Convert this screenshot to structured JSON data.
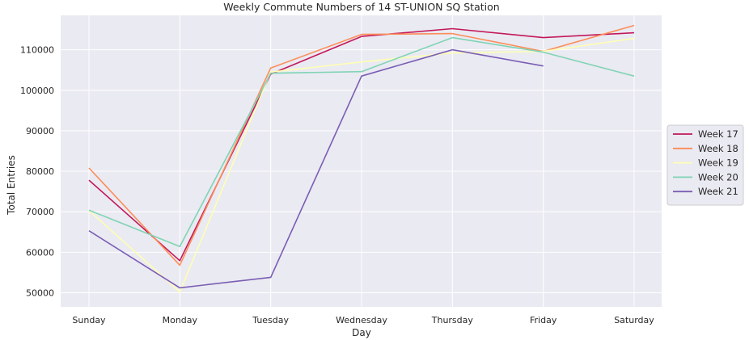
{
  "chart_data": {
    "type": "line",
    "title": "Weekly Commute Numbers of 14 ST-UNION SQ Station",
    "xlabel": "Day",
    "ylabel": "Total Entries",
    "categories": [
      "Sunday",
      "Monday",
      "Tuesday",
      "Wednesday",
      "Thursday",
      "Friday",
      "Saturday"
    ],
    "ylim": [
      46500,
      118500
    ],
    "yticks": [
      50000,
      60000,
      70000,
      80000,
      90000,
      100000,
      110000
    ],
    "grid": true,
    "legend_position": "right",
    "background": "#eaeaf2",
    "series": [
      {
        "name": "Week 17",
        "color": "#c2185b",
        "values": [
          77800,
          57900,
          104000,
          113300,
          115200,
          113000,
          114200
        ]
      },
      {
        "name": "Week 18",
        "color": "#fc8d59",
        "values": [
          80800,
          56800,
          105500,
          113800,
          114000,
          109600,
          116000
        ]
      },
      {
        "name": "Week 19",
        "color": "#fefeb4",
        "values": [
          70300,
          50200,
          104500,
          107000,
          109200,
          109600,
          112800
        ]
      },
      {
        "name": "Week 20",
        "color": "#7fd4b4",
        "values": [
          70400,
          61400,
          104200,
          104600,
          113000,
          109400,
          103500
        ]
      },
      {
        "name": "Week 21",
        "color": "#7a5db4",
        "values": [
          65300,
          51200,
          53800,
          103500,
          110000,
          106000,
          null
        ]
      }
    ]
  }
}
